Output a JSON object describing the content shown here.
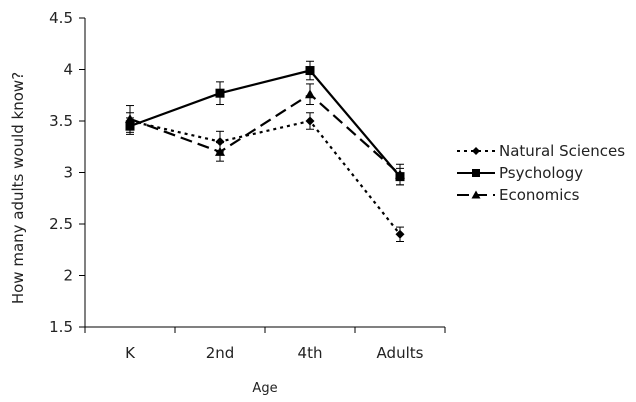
{
  "chart_data": {
    "type": "line",
    "title": "",
    "xlabel": "Age",
    "ylabel": "How many adults would know?",
    "categories": [
      "K",
      "2nd",
      "4th",
      "Adults"
    ],
    "ylim": [
      1.5,
      4.5
    ],
    "yticks": [
      "1.5",
      "2",
      "2.5",
      "3",
      "3.5",
      "4",
      "4.5"
    ],
    "grid": false,
    "legend_position": "right",
    "series": [
      {
        "name": "Natural Sciences",
        "values": [
          3.5,
          3.3,
          3.5,
          2.4
        ],
        "errors": [
          0.08,
          0.1,
          0.08,
          0.07
        ],
        "marker": "diamond",
        "line_style": "dotted",
        "color": "#000000"
      },
      {
        "name": "Psychology",
        "values": [
          3.45,
          3.77,
          3.99,
          2.96
        ],
        "errors": [
          0.08,
          0.11,
          0.09,
          0.08
        ],
        "marker": "square",
        "line_style": "solid",
        "color": "#000000"
      },
      {
        "name": "Economics",
        "values": [
          3.52,
          3.2,
          3.76,
          2.98
        ],
        "errors": [
          0.13,
          0.09,
          0.1,
          0.1
        ],
        "marker": "triangle",
        "line_style": "dashed",
        "color": "#000000"
      }
    ]
  }
}
